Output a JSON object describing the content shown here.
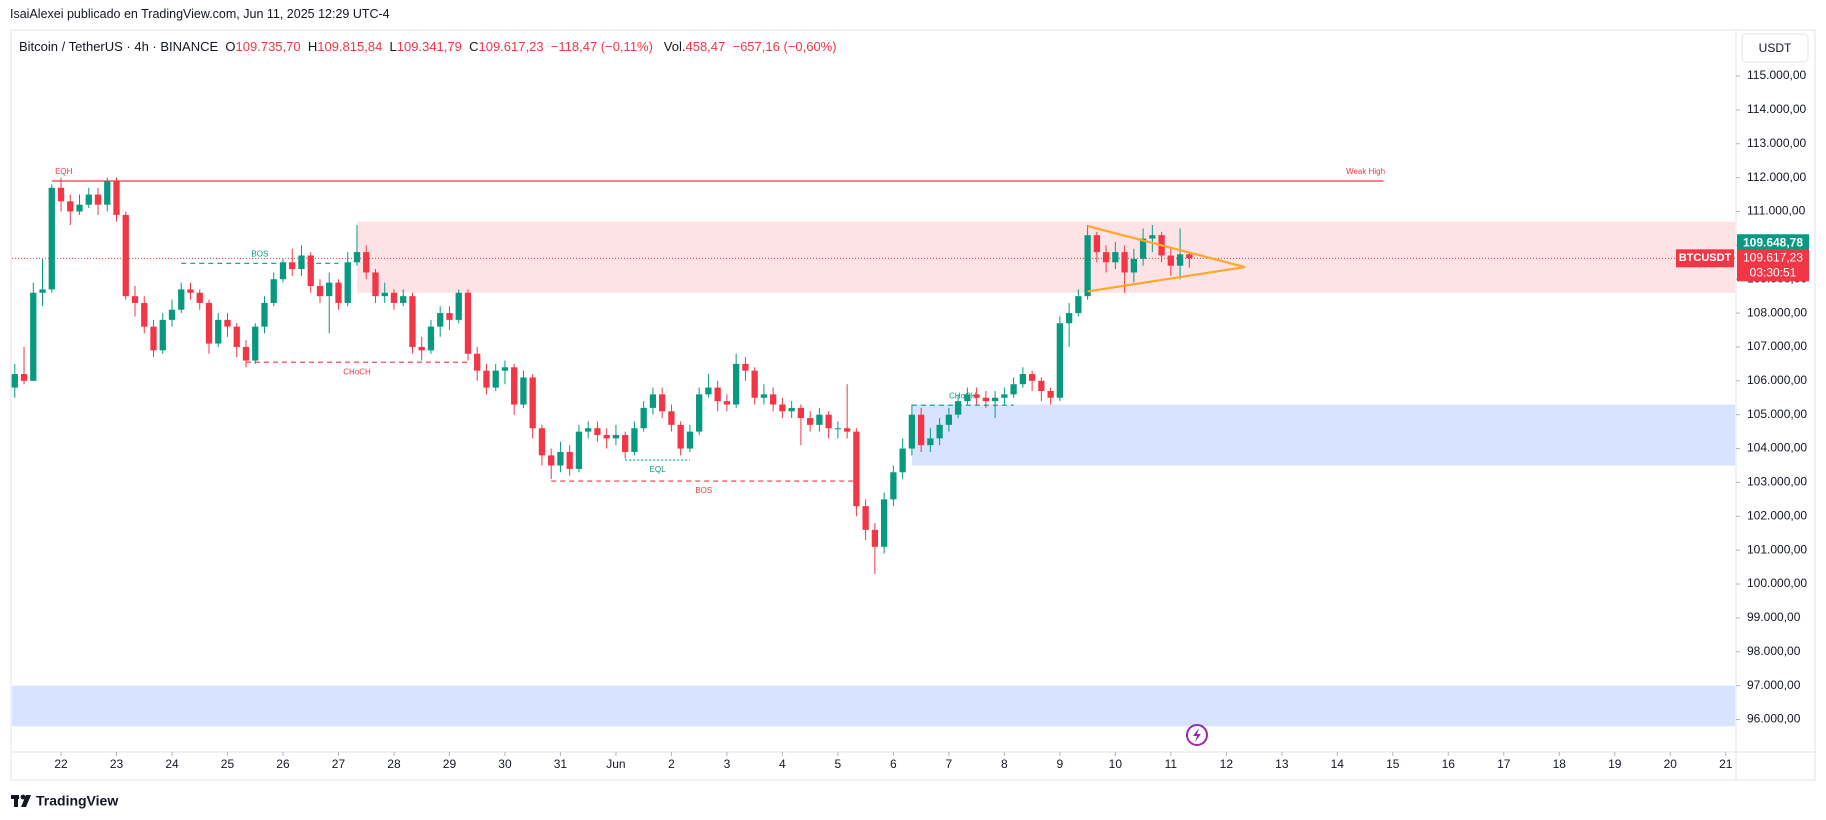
{
  "chart_data": {
    "type": "candlestick",
    "attribution": "IsaiAlexei publicado en TradingView.com, Jun 11, 2025 12:29 UTC-4",
    "title": "Bitcoin / TetherUS · 4h · BINANCE",
    "ohlc_legend": [
      {
        "key": "O",
        "label": "109.735,70"
      },
      {
        "key": "H",
        "label": "109.815,84"
      },
      {
        "key": "L",
        "label": "109.341,79"
      },
      {
        "key": "C",
        "label": "109.617,23"
      }
    ],
    "change": "−118,47 (−0,11%)",
    "volume": {
      "key": "Vol.",
      "label": "458,47",
      "change": "−657,16 (−0,60%)"
    },
    "currency": "USDT",
    "brand": "TradingView",
    "up_color": "#089981",
    "down_color": "#f23645",
    "xlim": [
      -5.3,
      181
    ],
    "ylim": [
      95070,
      116270
    ],
    "xticks": [
      {
        "value": 0,
        "label": "22"
      },
      {
        "value": 6,
        "label": "23"
      },
      {
        "value": 12,
        "label": "24"
      },
      {
        "value": 18,
        "label": "25"
      },
      {
        "value": 24,
        "label": "26"
      },
      {
        "value": 30,
        "label": "27"
      },
      {
        "value": 36,
        "label": "28"
      },
      {
        "value": 42,
        "label": "29"
      },
      {
        "value": 48,
        "label": "30"
      },
      {
        "value": 54,
        "label": "31"
      },
      {
        "value": 60,
        "label": "Jun"
      },
      {
        "value": 66,
        "label": "2"
      },
      {
        "value": 72,
        "label": "3"
      },
      {
        "value": 78,
        "label": "4"
      },
      {
        "value": 84,
        "label": "5"
      },
      {
        "value": 90,
        "label": "6"
      },
      {
        "value": 96,
        "label": "7"
      },
      {
        "value": 102,
        "label": "8"
      },
      {
        "value": 108,
        "label": "9"
      },
      {
        "value": 114,
        "label": "10"
      },
      {
        "value": 120,
        "label": "11"
      },
      {
        "value": 126,
        "label": "12"
      },
      {
        "value": 132,
        "label": "13"
      },
      {
        "value": 138,
        "label": "14"
      },
      {
        "value": 144,
        "label": "15"
      },
      {
        "value": 150,
        "label": "16"
      },
      {
        "value": 156,
        "label": "17"
      },
      {
        "value": 162,
        "label": "18"
      },
      {
        "value": 168,
        "label": "19"
      },
      {
        "value": 174,
        "label": "20"
      },
      {
        "value": 180,
        "label": "21"
      }
    ],
    "yticks": [
      {
        "value": 96000,
        "label": "96.000,00"
      },
      {
        "value": 97000,
        "label": "97.000,00"
      },
      {
        "value": 98000,
        "label": "98.000,00"
      },
      {
        "value": 99000,
        "label": "99.000,00"
      },
      {
        "value": 100000,
        "label": "100.000,00"
      },
      {
        "value": 101000,
        "label": "101.000,00"
      },
      {
        "value": 102000,
        "label": "102.000,00"
      },
      {
        "value": 103000,
        "label": "103.000,00"
      },
      {
        "value": 104000,
        "label": "104.000,00"
      },
      {
        "value": 105000,
        "label": "105.000,00"
      },
      {
        "value": 106000,
        "label": "106.000,00"
      },
      {
        "value": 107000,
        "label": "107.000,00"
      },
      {
        "value": 108000,
        "label": "108.000,00"
      },
      {
        "value": 109000,
        "label": "109.000,00"
      },
      {
        "value": 110000,
        "label": "110.000,00"
      },
      {
        "value": 111000,
        "label": "111.000,00"
      },
      {
        "value": 112000,
        "label": "112.000,00"
      },
      {
        "value": 113000,
        "label": "113.000,00"
      },
      {
        "value": 114000,
        "label": "114.000,00"
      },
      {
        "value": 115000,
        "label": "115.000,00"
      }
    ],
    "x": [
      -5,
      -4,
      -3,
      -2,
      -1,
      0,
      1,
      2,
      3,
      4,
      5,
      6,
      7,
      8,
      9,
      10,
      11,
      12,
      13,
      14,
      15,
      16,
      17,
      18,
      19,
      20,
      21,
      22,
      23,
      24,
      25,
      26,
      27,
      28,
      29,
      30,
      31,
      32,
      33,
      34,
      35,
      36,
      37,
      38,
      39,
      40,
      41,
      42,
      43,
      44,
      45,
      46,
      47,
      48,
      49,
      50,
      51,
      52,
      53,
      54,
      55,
      56,
      57,
      58,
      59,
      60,
      61,
      62,
      63,
      64,
      65,
      66,
      67,
      68,
      69,
      70,
      71,
      72,
      73,
      74,
      75,
      76,
      77,
      78,
      79,
      80,
      81,
      82,
      83,
      84,
      85,
      86,
      87,
      88,
      89,
      90,
      91,
      92,
      93,
      94,
      95,
      96,
      97,
      98,
      99,
      100,
      101,
      102,
      103,
      104,
      105,
      106,
      107,
      108,
      109,
      110,
      111,
      112,
      113,
      114,
      115,
      116,
      117,
      118,
      119,
      120,
      121,
      122
    ],
    "open": [
      105800,
      106200,
      106000,
      108600,
      108700,
      111700,
      111300,
      111000,
      111200,
      111500,
      111200,
      111900,
      110900,
      108500,
      108300,
      107600,
      106900,
      107800,
      108100,
      108700,
      108600,
      108300,
      107100,
      107800,
      107600,
      107000,
      106600,
      107600,
      108300,
      109000,
      109500,
      109300,
      109700,
      108800,
      108500,
      108900,
      108300,
      109500,
      109800,
      109200,
      108500,
      108600,
      108300,
      108500,
      107000,
      106900,
      107600,
      108000,
      107800,
      108600,
      106800,
      106300,
      105800,
      106300,
      106400,
      105300,
      106100,
      104600,
      103800,
      103500,
      103900,
      103400,
      104500,
      104600,
      104400,
      104300,
      104400,
      103900,
      104600,
      105200,
      105600,
      105100,
      104700,
      104000,
      104500,
      105600,
      105800,
      105400,
      105300,
      106500,
      106300,
      105500,
      105600,
      105300,
      105100,
      105200,
      104900,
      104700,
      105000,
      104600,
      104600,
      104500,
      102300,
      101600,
      101100,
      102500,
      103300,
      104000,
      105000,
      104100,
      104300,
      104700,
      105000,
      105400,
      105600,
      105500,
      105400,
      105500,
      105600,
      105900,
      106200,
      106000,
      105700,
      105500,
      107700,
      108000,
      108500,
      110300,
      109800,
      109500,
      109800,
      109200,
      109600,
      110200,
      110300,
      109700,
      109400,
      109735.7
    ],
    "high": [
      106500,
      107000,
      108900,
      109600,
      111800,
      112000,
      111500,
      111500,
      111700,
      111700,
      112000,
      112000,
      111000,
      108800,
      108500,
      107800,
      108000,
      108400,
      108900,
      108900,
      108700,
      108400,
      108000,
      108000,
      107700,
      107200,
      107700,
      108500,
      109200,
      109600,
      109900,
      110000,
      109800,
      109000,
      109200,
      109000,
      109800,
      110600,
      110000,
      109300,
      108900,
      108700,
      108700,
      108600,
      107300,
      107800,
      108200,
      108200,
      108700,
      108700,
      107000,
      106500,
      106500,
      106600,
      106500,
      106300,
      106200,
      104700,
      104000,
      104200,
      104100,
      104700,
      104800,
      104800,
      104600,
      104700,
      104500,
      104800,
      105400,
      105800,
      105800,
      105300,
      104800,
      104700,
      105800,
      106200,
      106000,
      105600,
      106800,
      106700,
      106400,
      105900,
      105800,
      105500,
      105400,
      105300,
      105100,
      105200,
      105100,
      104800,
      105900,
      104600,
      102500,
      101800,
      102700,
      103500,
      104300,
      105300,
      105200,
      104600,
      104900,
      105200,
      105600,
      105800,
      105800,
      105700,
      105700,
      105800,
      106100,
      106400,
      106300,
      106100,
      105800,
      107900,
      108300,
      108700,
      110600,
      110400,
      110000,
      110100,
      110000,
      109900,
      110500,
      110600,
      110400,
      109900,
      110500,
      109815.84
    ],
    "low": [
      105500,
      105900,
      106000,
      108200,
      108600,
      111000,
      110600,
      110900,
      111100,
      110900,
      111000,
      110700,
      108400,
      107900,
      107400,
      106700,
      106800,
      107600,
      108000,
      108400,
      108100,
      106800,
      107000,
      107300,
      106700,
      106400,
      106500,
      107400,
      108200,
      108900,
      109100,
      109100,
      108600,
      108300,
      107400,
      108100,
      108200,
      109400,
      109000,
      108300,
      108300,
      108100,
      108200,
      106800,
      106600,
      106800,
      107300,
      107500,
      107700,
      106600,
      106000,
      105600,
      105700,
      105900,
      105000,
      105200,
      104300,
      103500,
      103100,
      103300,
      103200,
      103300,
      104300,
      104200,
      104000,
      104100,
      103700,
      103800,
      104500,
      105000,
      104900,
      104500,
      103800,
      103900,
      104400,
      105500,
      105100,
      105100,
      105200,
      106000,
      105300,
      105300,
      105100,
      104900,
      104900,
      104100,
      104500,
      104500,
      104300,
      104300,
      104300,
      102000,
      101300,
      100300,
      100900,
      102300,
      103100,
      103800,
      103900,
      103900,
      104100,
      104500,
      104900,
      105300,
      105300,
      105200,
      104900,
      105300,
      105500,
      105800,
      105700,
      105400,
      105300,
      105400,
      107000,
      107900,
      108400,
      109500,
      109200,
      109300,
      108600,
      108900,
      109400,
      109800,
      109500,
      109100,
      109000,
      109341.79
    ],
    "close": [
      106200,
      106000,
      108600,
      108700,
      111700,
      111300,
      111000,
      111200,
      111500,
      111200,
      111900,
      110900,
      108500,
      108300,
      107600,
      106900,
      107800,
      108100,
      108700,
      108600,
      108300,
      107100,
      107800,
      107600,
      107000,
      106600,
      107600,
      108300,
      109000,
      109500,
      109300,
      109700,
      108800,
      108500,
      108900,
      108300,
      109500,
      109800,
      109200,
      108500,
      108600,
      108300,
      108500,
      107000,
      106900,
      107600,
      108000,
      107800,
      108600,
      106800,
      106300,
      105800,
      106300,
      106400,
      105300,
      106100,
      104600,
      103800,
      103500,
      103900,
      103400,
      104500,
      104600,
      104400,
      104300,
      104400,
      103900,
      104600,
      105200,
      105600,
      105100,
      104700,
      104000,
      104500,
      105600,
      105800,
      105400,
      105300,
      106500,
      106300,
      105500,
      105600,
      105300,
      105100,
      105200,
      104900,
      104700,
      105000,
      104600,
      104600,
      104500,
      102300,
      101600,
      101100,
      102500,
      103300,
      104000,
      105000,
      104100,
      104300,
      104700,
      105000,
      105400,
      105600,
      105500,
      105400,
      105500,
      105600,
      105900,
      106200,
      106000,
      105700,
      105500,
      107700,
      108000,
      108500,
      110300,
      109800,
      109500,
      109800,
      109200,
      109600,
      110200,
      110300,
      109700,
      109400,
      109735.7,
      109617.23
    ],
    "zones": [
      {
        "x": [
          32,
          181
        ],
        "y": [
          108600,
          110700
        ],
        "color": "rgba(242,54,69,0.14)"
      },
      {
        "x": [
          92,
          181
        ],
        "y": [
          103500,
          105300
        ],
        "color": "rgba(41,98,255,0.18)"
      },
      {
        "x": [
          -5.3,
          181
        ],
        "y": [
          95800,
          97000
        ],
        "color": "rgba(41,98,255,0.18)"
      }
    ],
    "levels": [
      {
        "x": [
          -1,
          143
        ],
        "y": 111900,
        "label": "EQH",
        "end_label": "Weak High",
        "color": "#f23645",
        "style": "solid",
        "label_side": "above"
      },
      {
        "x": [
          13,
          30
        ],
        "y": 109470,
        "label": "BOS",
        "color": "#089981",
        "style": "dashed",
        "label_side": "above"
      },
      {
        "x": [
          20,
          44
        ],
        "y": 106550,
        "label": "CHoCH",
        "color": "#f23645",
        "style": "dashed",
        "label_side": "below"
      },
      {
        "x": [
          61,
          68
        ],
        "y": 103660,
        "label": "EQL",
        "color": "#089981",
        "style": "dotted",
        "label_side": "below"
      },
      {
        "x": [
          53,
          86
        ],
        "y": 103040,
        "label": "BOS",
        "color": "#f23645",
        "style": "dashed",
        "label_side": "below"
      },
      {
        "x": [
          92,
          103
        ],
        "y": 105280,
        "label": "CHoCH",
        "color": "#089981",
        "style": "dashed",
        "label_side": "above"
      }
    ],
    "triangle": {
      "x": [
        111,
        128,
        111
      ],
      "y": [
        110570,
        109360,
        108640
      ],
      "color": "#ffa726"
    },
    "price_labels": [
      {
        "value": 109648.78,
        "label": "109.648,78",
        "color": "#089981"
      },
      {
        "value": 109617.23,
        "label": "109.617,23",
        "countdown": "03:30:51",
        "tag": "BTCUSDT",
        "color": "#f23645"
      }
    ]
  }
}
